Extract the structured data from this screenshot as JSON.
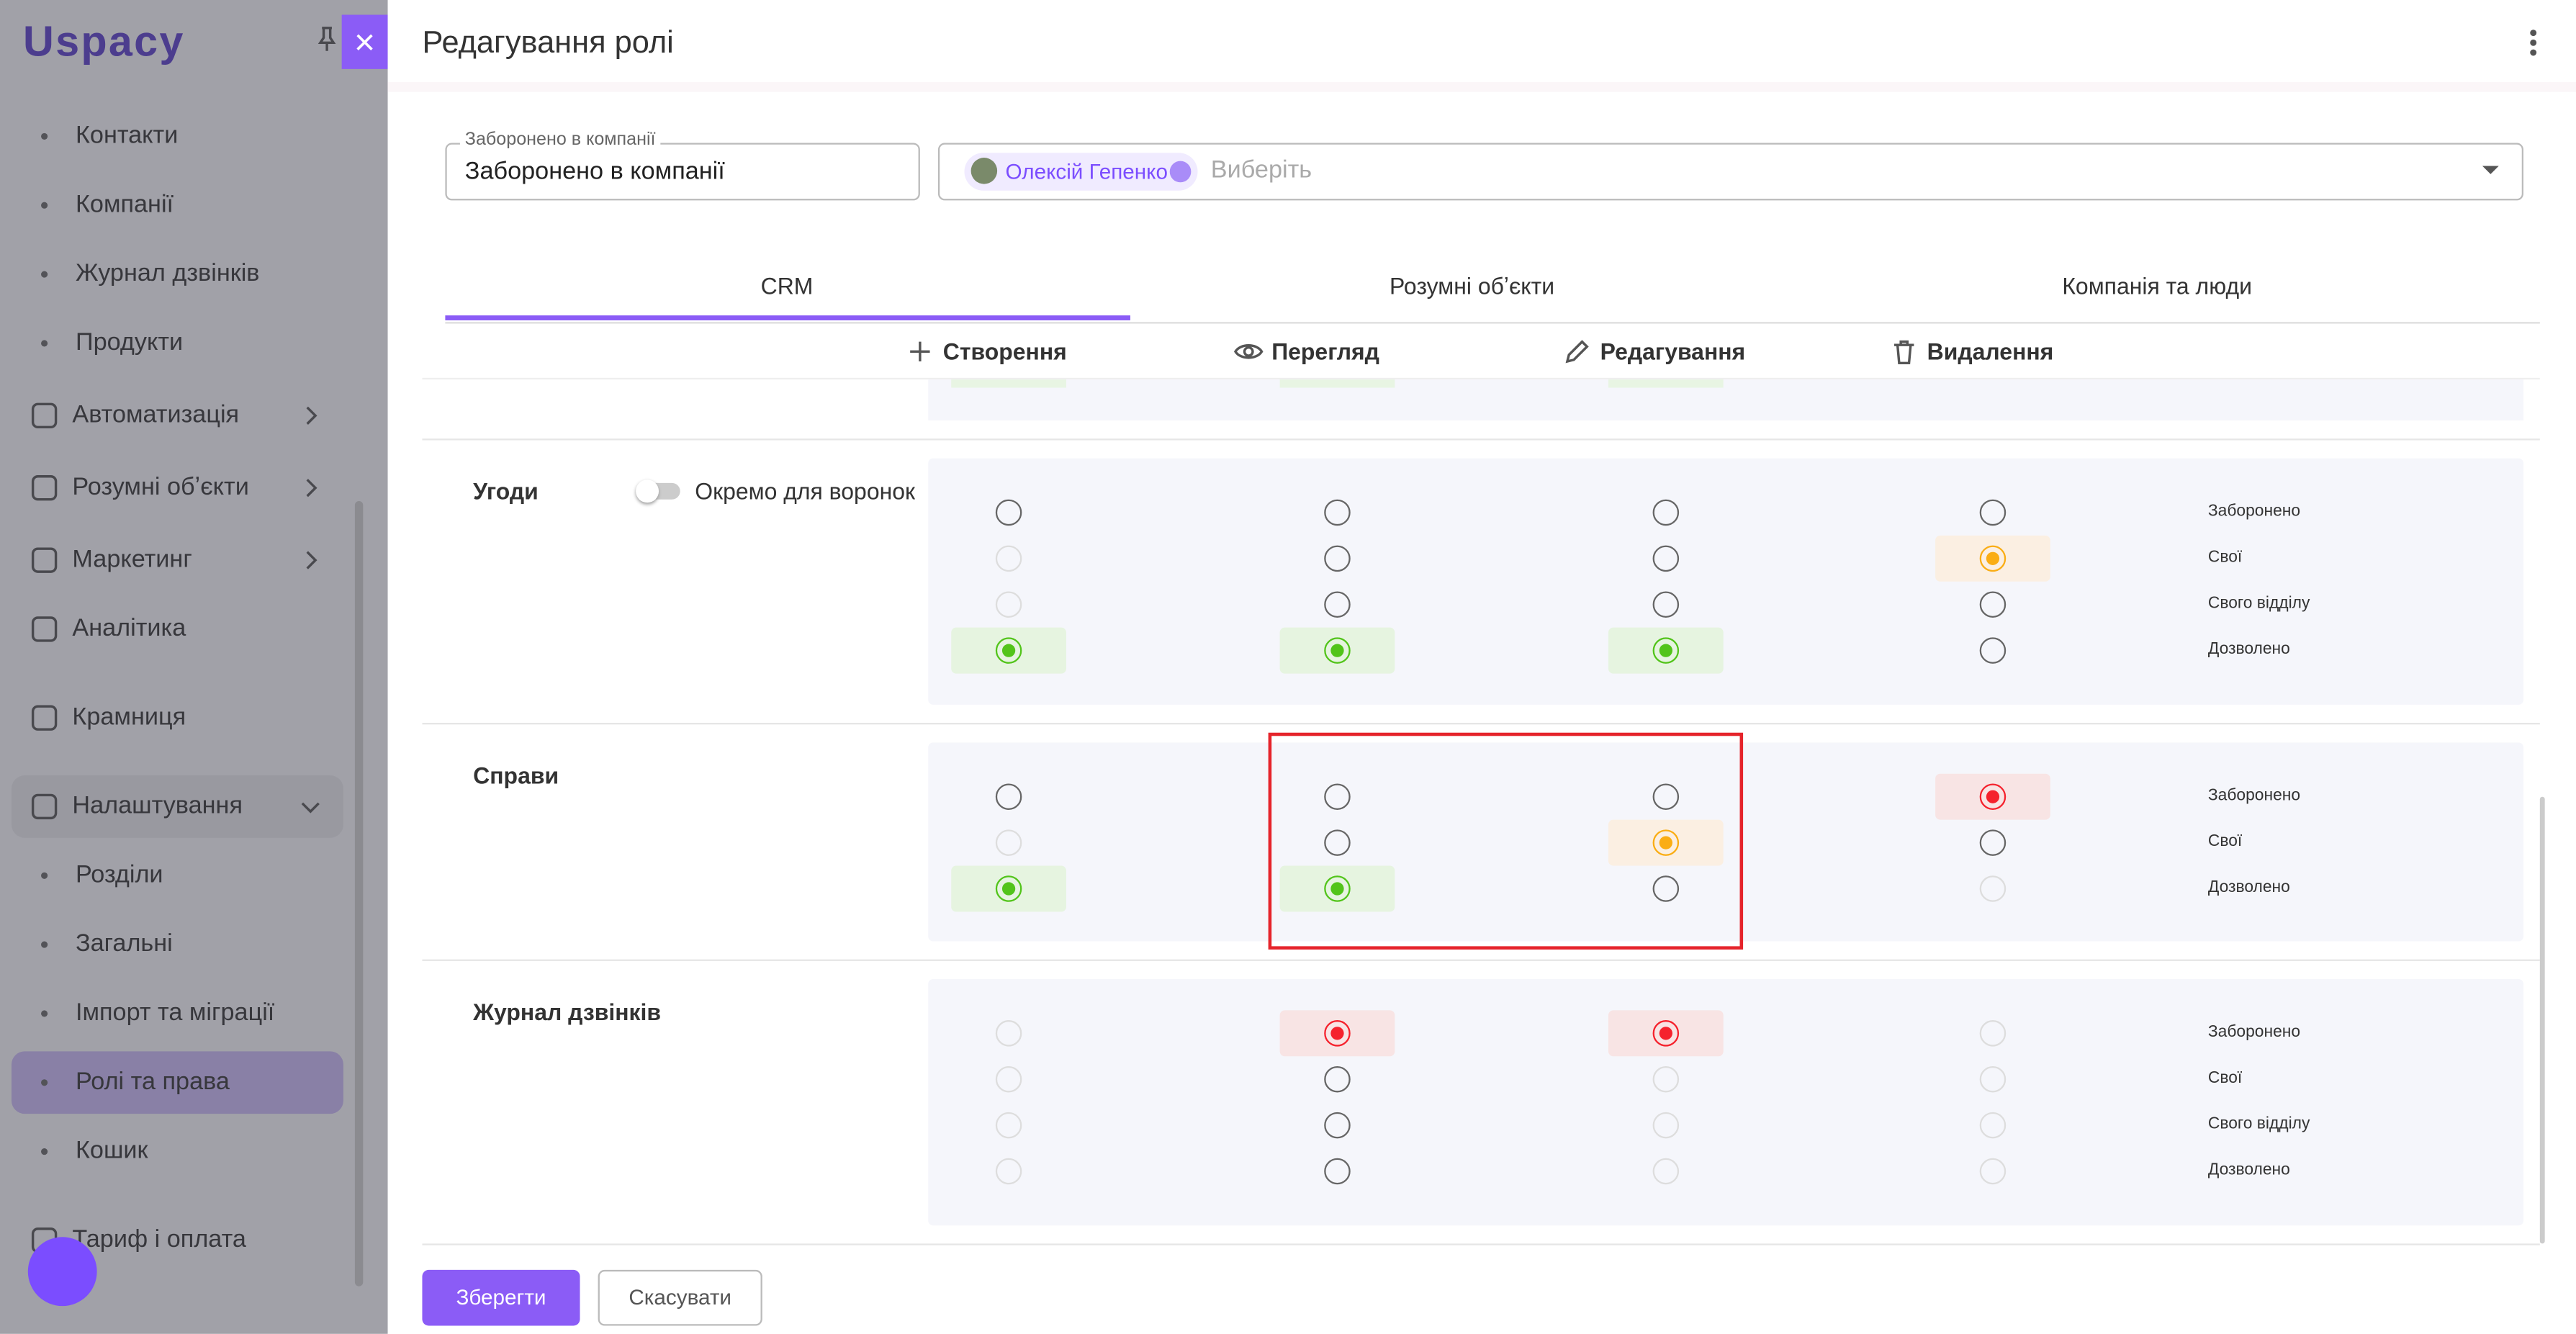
{
  "sidebar": {
    "logo": "Uspacy",
    "items": [
      "Контакти",
      "Компанії",
      "Журнал дзвінків",
      "Продукти",
      "Автоматизація",
      "Розумні обʼєкти",
      "Маркетинг",
      "Аналітика",
      "Крамниця",
      "Налаштування",
      "Розділи",
      "Загальні",
      "Імпорт та міграції",
      "Ролі та права",
      "Кошик",
      "Тариф і оплата"
    ]
  },
  "header": {
    "title": "Редагування ролі"
  },
  "form": {
    "name_label": "Заборонено в компанії",
    "name_value": "Заборонено в компанії",
    "user_chip": "Олексій Гепенко",
    "select_placeholder": "Виберіть"
  },
  "tabs": [
    "CRM",
    "Розумні обʼєкти",
    "Компанія та люди"
  ],
  "columns": [
    "Створення",
    "Перегляд",
    "Редагування",
    "Видалення"
  ],
  "sections": [
    {
      "name": "Угоди",
      "toggle_label": "Окремо для воронок",
      "levels": [
        "Заборонено",
        "Свої",
        "Свого відділу",
        "Дозволено"
      ]
    },
    {
      "name": "Справи",
      "levels": [
        "Заборонено",
        "Свої",
        "Дозволено"
      ]
    },
    {
      "name": "Журнал дзвінків",
      "levels": [
        "Заборонено",
        "Свої",
        "Свого відділу",
        "Дозволено"
      ]
    }
  ],
  "buttons": {
    "save": "Зберегти",
    "cancel": "Скасувати"
  }
}
